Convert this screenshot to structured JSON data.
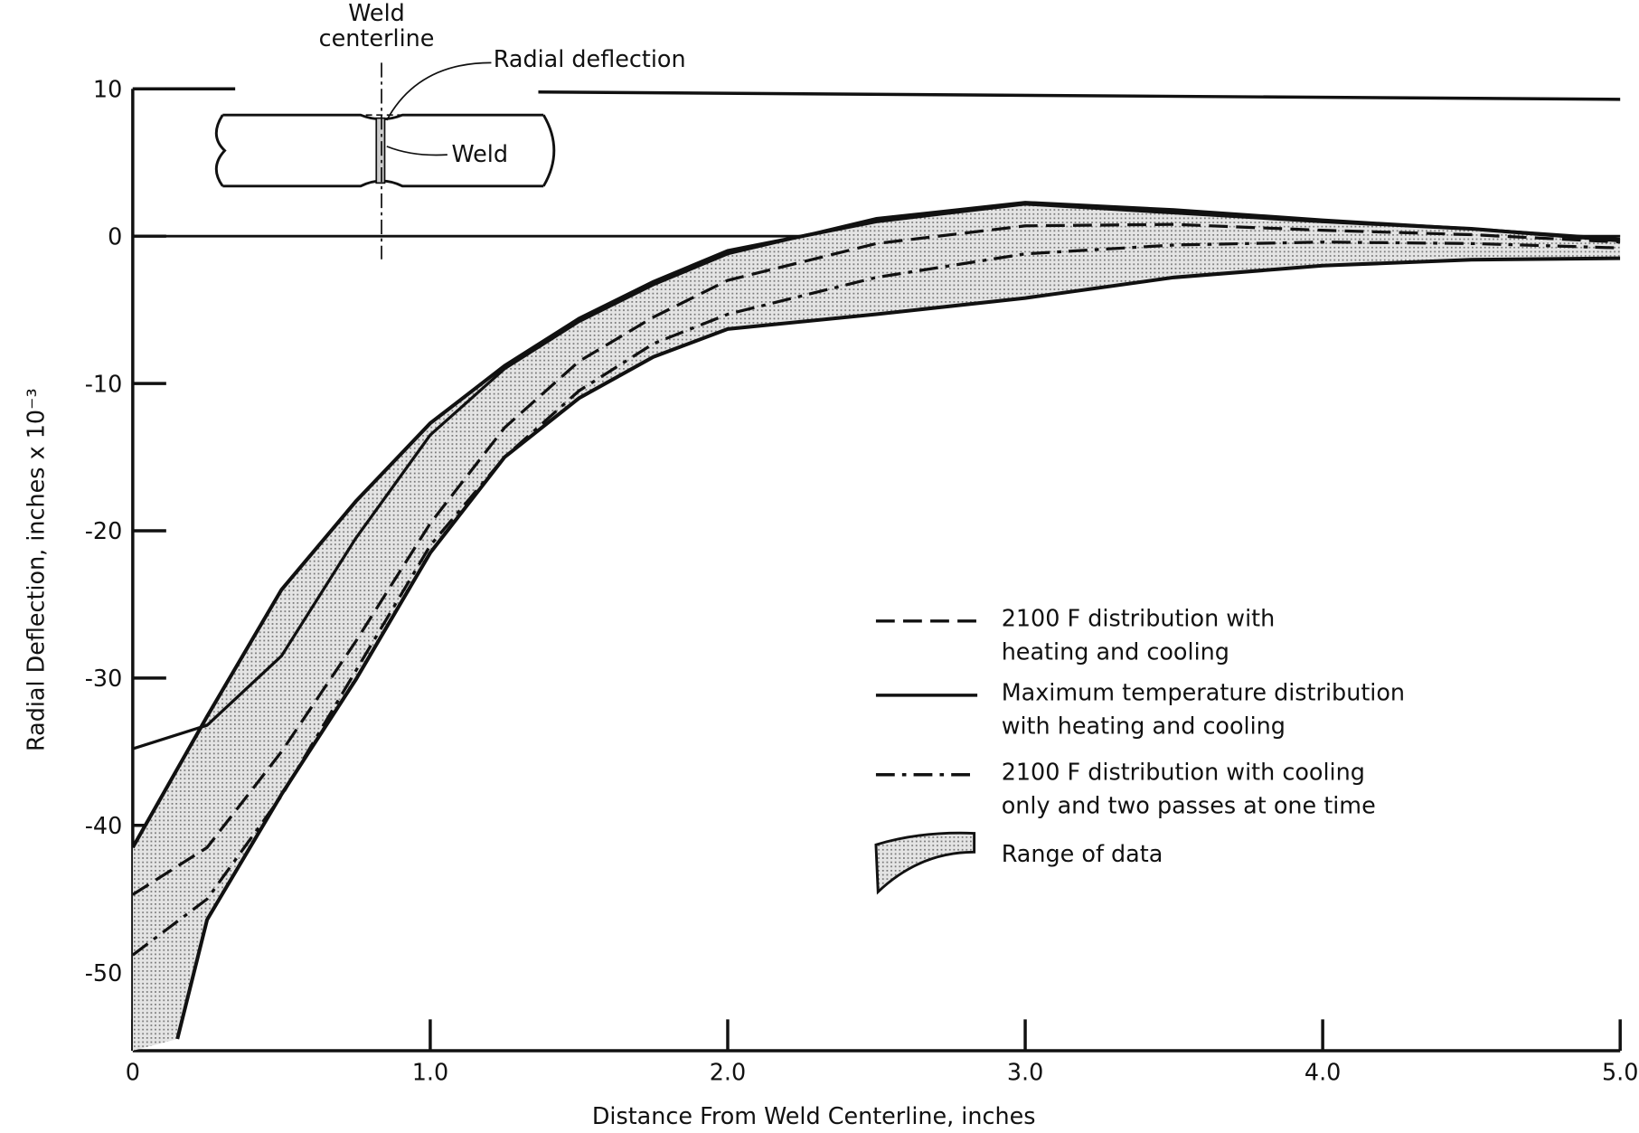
{
  "chart_data": {
    "type": "line",
    "xlabel": "Distance From Weld Centerline, inches",
    "ylabel": "Radial Deflection, inches x 10⁻³",
    "xlim": [
      0,
      5
    ],
    "ylim": [
      -55.3,
      10
    ],
    "xticks": [
      0,
      {
        "value": 1,
        "label": "1.0"
      },
      {
        "value": 2,
        "label": "2.0"
      },
      {
        "value": 3,
        "label": "3.0"
      },
      {
        "value": 4,
        "label": "4.0"
      },
      {
        "value": 5,
        "label": "5.0"
      }
    ],
    "yticks": [
      10,
      0,
      -10,
      -20,
      -30,
      -40,
      -50
    ],
    "annotations": [
      "Weld\ncenterline",
      "Radial deflection",
      "Weld"
    ],
    "band": {
      "name": "Range of data",
      "color": "#c8c8c8",
      "x": [
        0,
        0.25,
        0.5,
        0.75,
        1.0,
        1.25,
        1.5,
        1.75,
        2.0,
        2.5,
        3.0,
        3.5,
        4.0,
        4.5,
        5.0
      ],
      "upper": [
        -41.5,
        -32.6,
        -24,
        -18,
        -12.7,
        -8.8,
        -5.6,
        -3.1,
        -1,
        1,
        2.2,
        1.6,
        1,
        0.5,
        -0.3
      ],
      "lower_x": [
        0.15,
        0.25,
        0.5,
        0.75,
        1.0,
        1.25,
        1.5,
        1.75,
        2.0,
        2.5,
        3.0,
        3.5,
        4.0,
        4.5,
        5.0
      ],
      "lower": [
        -54.5,
        -46.4,
        -37.9,
        -30.1,
        -21.5,
        -15,
        -11,
        -8.2,
        -6.3,
        -5.3,
        -4.2,
        -2.8,
        -2,
        -1.6,
        -1.5
      ]
    },
    "series": [
      {
        "name": "2100 F distribution with\nheating and cooling",
        "color": "#111111",
        "style": "dashed",
        "x": [
          0,
          0.25,
          0.5,
          0.75,
          1.0,
          1.25,
          1.5,
          1.75,
          2.0,
          2.5,
          3.0,
          3.5,
          4.0,
          4.5,
          5.0
        ],
        "values": [
          -44.7,
          -41.5,
          -35,
          -27.5,
          -19.5,
          -13,
          -8.5,
          -5.5,
          -3,
          -0.5,
          0.7,
          0.8,
          0.4,
          0.1,
          -0.4
        ]
      },
      {
        "name": "Maximum temperature distribution\nwith heating and cooling",
        "color": "#111111",
        "style": "solid",
        "x": [
          0,
          0.25,
          0.5,
          0.75,
          1.0,
          1.25,
          1.5,
          1.75,
          2.0,
          2.5,
          3.0,
          3.5,
          4.0,
          4.5,
          5.0
        ],
        "values": [
          -34.8,
          -33.2,
          -28.5,
          -20.5,
          -13.5,
          -9,
          -5.8,
          -3.3,
          -1.2,
          1.2,
          2.3,
          1.8,
          1.1,
          0.5,
          -0.2
        ]
      },
      {
        "name": "2100 F distribution with cooling\nonly and two passes at one time",
        "color": "#111111",
        "style": "dashdot",
        "x": [
          0,
          0.25,
          0.5,
          0.75,
          1.0,
          1.25,
          1.5,
          1.75,
          2.0,
          2.5,
          3.0,
          3.5,
          4.0,
          4.5,
          5.0
        ],
        "values": [
          -48.8,
          -45,
          -38,
          -29.5,
          -21,
          -15,
          -10.5,
          -7.3,
          -5.3,
          -2.8,
          -1.2,
          -0.6,
          -0.4,
          -0.5,
          -0.8
        ]
      }
    ]
  }
}
